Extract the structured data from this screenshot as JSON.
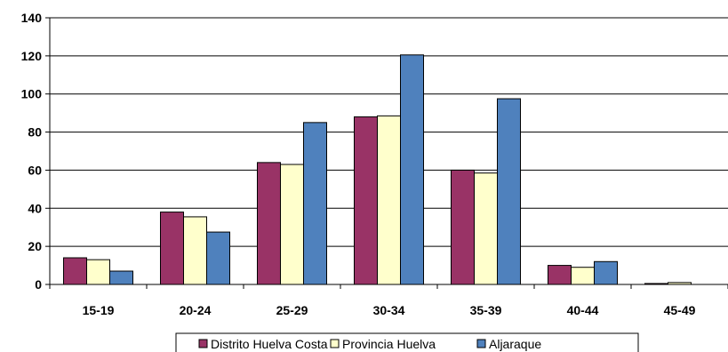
{
  "chart_data": {
    "type": "bar",
    "title": "",
    "xlabel": "",
    "ylabel": "",
    "categories": [
      "15-19",
      "20-24",
      "25-29",
      "30-34",
      "35-39",
      "40-44",
      "45-49"
    ],
    "ylim": [
      0,
      140
    ],
    "yticks": [
      0,
      20,
      40,
      60,
      80,
      100,
      120,
      140
    ],
    "grid": true,
    "legend_position": "bottom",
    "series": [
      {
        "name": "Distrito Huelva Costa",
        "color": "#993366",
        "values": [
          14,
          38,
          64,
          88,
          60,
          10,
          0.5
        ]
      },
      {
        "name": "Provincia Huelva",
        "color": "#FFFFCC",
        "values": [
          13,
          35.5,
          63,
          88.5,
          58.5,
          9,
          1
        ]
      },
      {
        "name": "Aljaraque",
        "color": "#4F81BD",
        "values": [
          7,
          27.5,
          85,
          120.5,
          97.5,
          12,
          0
        ]
      }
    ]
  }
}
